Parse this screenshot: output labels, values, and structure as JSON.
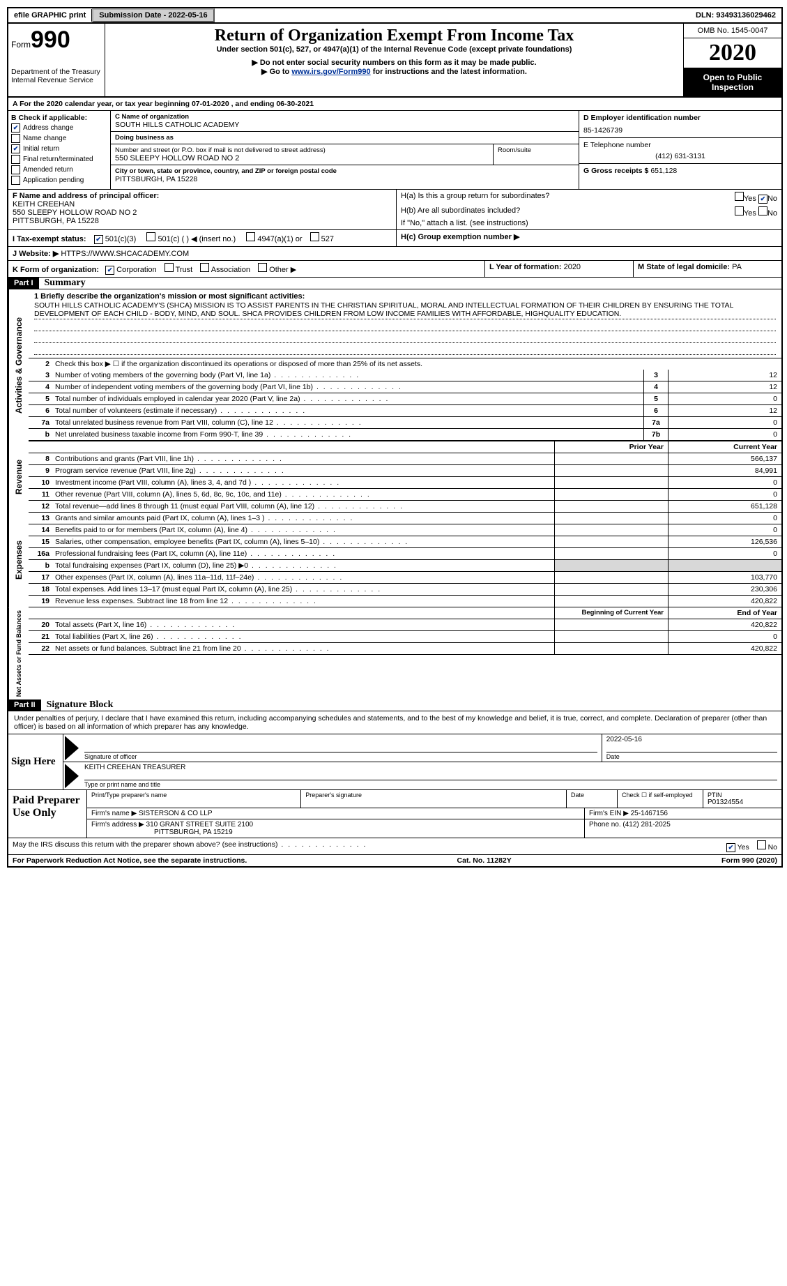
{
  "topbar": {
    "efile": "efile GRAPHIC print",
    "submission_label": "Submission Date - 2022-05-16",
    "dln": "DLN: 93493136029462"
  },
  "header": {
    "form_word": "Form",
    "form_num": "990",
    "dept1": "Department of the Treasury",
    "dept2": "Internal Revenue Service",
    "title": "Return of Organization Exempt From Income Tax",
    "subtitle": "Under section 501(c), 527, or 4947(a)(1) of the Internal Revenue Code (except private foundations)",
    "note1": "Do not enter social security numbers on this form as it may be made public.",
    "note2_pre": "Go to ",
    "note2_link": "www.irs.gov/Form990",
    "note2_post": " for instructions and the latest information.",
    "omb": "OMB No. 1545-0047",
    "year": "2020",
    "inspect": "Open to Public Inspection"
  },
  "rowA": "A For the 2020 calendar year, or tax year beginning 07-01-2020    , and ending 06-30-2021",
  "colB": {
    "label": "B Check if applicable:",
    "items": [
      {
        "label": "Address change",
        "checked": true
      },
      {
        "label": "Name change",
        "checked": false
      },
      {
        "label": "Initial return",
        "checked": true
      },
      {
        "label": "Final return/terminated",
        "checked": false
      },
      {
        "label": "Amended return",
        "checked": false
      },
      {
        "label": "Application pending",
        "checked": false
      }
    ]
  },
  "colC": {
    "name_lbl": "C Name of organization",
    "name": "SOUTH HILLS CATHOLIC ACADEMY",
    "dba_lbl": "Doing business as",
    "dba": "",
    "street_lbl": "Number and street (or P.O. box if mail is not delivered to street address)",
    "room_lbl": "Room/suite",
    "street": "550 SLEEPY HOLLOW ROAD NO 2",
    "city_lbl": "City or town, state or province, country, and ZIP or foreign postal code",
    "city": "PITTSBURGH, PA  15228",
    "officer_lbl": "F Name and address of principal officer:",
    "officer_name": "KEITH CREEHAN",
    "officer_addr1": "550 SLEEPY HOLLOW ROAD NO 2",
    "officer_addr2": "PITTSBURGH, PA  15228"
  },
  "colD": {
    "ein_lbl": "D Employer identification number",
    "ein": "85-1426739",
    "phone_lbl": "E Telephone number",
    "phone": "(412) 631-3131",
    "gross_lbl": "G Gross receipts $",
    "gross": "651,128"
  },
  "rowH": {
    "ha_lbl": "H(a)  Is this a group return for subordinates?",
    "ha_yes": "Yes",
    "ha_no": "No",
    "hb_lbl": "H(b)  Are all subordinates included?",
    "hb_yes": "Yes",
    "hb_no": "No",
    "hb_note": "If \"No,\" attach a list. (see instructions)",
    "hc_lbl": "H(c)  Group exemption number ▶"
  },
  "rowI": {
    "label": "I   Tax-exempt status:",
    "opt1": "501(c)(3)",
    "opt2": "501(c) (   ) ◀ (insert no.)",
    "opt3": "4947(a)(1) or",
    "opt4": "527"
  },
  "rowJ": {
    "label": "J   Website: ▶",
    "value": "HTTPS://WWW.SHCACADEMY.COM"
  },
  "rowK": {
    "label": "K Form of organization:",
    "opts": [
      "Corporation",
      "Trust",
      "Association",
      "Other ▶"
    ],
    "checked": 0
  },
  "rowL": {
    "l_label": "L Year of formation:",
    "l_val": "2020",
    "m_label": "M State of legal domicile:",
    "m_val": "PA"
  },
  "part1": {
    "header": "Part I",
    "title": "Summary",
    "q1_label": "1  Briefly describe the organization's mission or most significant activities:",
    "mission": "SOUTH HILLS CATHOLIC ACADEMY'S (SHCA) MISSION IS TO ASSIST PARENTS IN THE CHRISTIAN SPIRITUAL, MORAL AND INTELLECTUAL FORMATION OF THEIR CHILDREN BY ENSURING THE TOTAL DEVELOPMENT OF EACH CHILD - BODY, MIND, AND SOUL. SHCA PROVIDES CHILDREN FROM LOW INCOME FAMILIES WITH AFFORDABLE, HIGHQUALITY EDUCATION.",
    "q2": "Check this box ▶ ☐ if the organization discontinued its operations or disposed of more than 25% of its net assets.",
    "gov_rows": [
      {
        "n": "3",
        "t": "Number of voting members of the governing body (Part VI, line 1a)",
        "k": "3",
        "v": "12"
      },
      {
        "n": "4",
        "t": "Number of independent voting members of the governing body (Part VI, line 1b)",
        "k": "4",
        "v": "12"
      },
      {
        "n": "5",
        "t": "Total number of individuals employed in calendar year 2020 (Part V, line 2a)",
        "k": "5",
        "v": "0"
      },
      {
        "n": "6",
        "t": "Total number of volunteers (estimate if necessary)",
        "k": "6",
        "v": "12"
      },
      {
        "n": "7a",
        "t": "Total unrelated business revenue from Part VIII, column (C), line 12",
        "k": "7a",
        "v": "0"
      },
      {
        "n": "b",
        "t": "Net unrelated business taxable income from Form 990-T, line 39",
        "k": "7b",
        "v": "0"
      }
    ],
    "py_hdr": "Prior Year",
    "cy_hdr": "Current Year",
    "rev_rows": [
      {
        "n": "8",
        "t": "Contributions and grants (Part VIII, line 1h)",
        "py": "",
        "cy": "566,137"
      },
      {
        "n": "9",
        "t": "Program service revenue (Part VIII, line 2g)",
        "py": "",
        "cy": "84,991"
      },
      {
        "n": "10",
        "t": "Investment income (Part VIII, column (A), lines 3, 4, and 7d )",
        "py": "",
        "cy": "0"
      },
      {
        "n": "11",
        "t": "Other revenue (Part VIII, column (A), lines 5, 6d, 8c, 9c, 10c, and 11e)",
        "py": "",
        "cy": "0"
      },
      {
        "n": "12",
        "t": "Total revenue—add lines 8 through 11 (must equal Part VIII, column (A), line 12)",
        "py": "",
        "cy": "651,128"
      }
    ],
    "exp_rows": [
      {
        "n": "13",
        "t": "Grants and similar amounts paid (Part IX, column (A), lines 1–3 )",
        "py": "",
        "cy": "0"
      },
      {
        "n": "14",
        "t": "Benefits paid to or for members (Part IX, column (A), line 4)",
        "py": "",
        "cy": "0"
      },
      {
        "n": "15",
        "t": "Salaries, other compensation, employee benefits (Part IX, column (A), lines 5–10)",
        "py": "",
        "cy": "126,536"
      },
      {
        "n": "16a",
        "t": "Professional fundraising fees (Part IX, column (A), line 11e)",
        "py": "",
        "cy": "0"
      },
      {
        "n": "b",
        "t": "Total fundraising expenses (Part IX, column (D), line 25) ▶0",
        "py": "shade",
        "cy": "shade"
      },
      {
        "n": "17",
        "t": "Other expenses (Part IX, column (A), lines 11a–11d, 11f–24e)",
        "py": "",
        "cy": "103,770"
      },
      {
        "n": "18",
        "t": "Total expenses. Add lines 13–17 (must equal Part IX, column (A), line 25)",
        "py": "",
        "cy": "230,306"
      },
      {
        "n": "19",
        "t": "Revenue less expenses. Subtract line 18 from line 12",
        "py": "",
        "cy": "420,822"
      }
    ],
    "na_hdr1": "Beginning of Current Year",
    "na_hdr2": "End of Year",
    "na_rows": [
      {
        "n": "20",
        "t": "Total assets (Part X, line 16)",
        "py": "",
        "cy": "420,822"
      },
      {
        "n": "21",
        "t": "Total liabilities (Part X, line 26)",
        "py": "",
        "cy": "0"
      },
      {
        "n": "22",
        "t": "Net assets or fund balances. Subtract line 21 from line 20",
        "py": "",
        "cy": "420,822"
      }
    ],
    "vlabels": {
      "gov": "Activities & Governance",
      "rev": "Revenue",
      "exp": "Expenses",
      "na": "Net Assets or Fund Balances"
    }
  },
  "part2": {
    "header": "Part II",
    "title": "Signature Block",
    "penalty": "Under penalties of perjury, I declare that I have examined this return, including accompanying schedules and statements, and to the best of my knowledge and belief, it is true, correct, and complete. Declaration of preparer (other than officer) is based on all information of which preparer has any knowledge.",
    "sign_here": "Sign Here",
    "sig_officer_lbl": "Signature of officer",
    "sig_date": "2022-05-16",
    "date_lbl": "Date",
    "name_title": "KEITH CREEHAN  TREASURER",
    "name_title_lbl": "Type or print name and title",
    "paid": "Paid Preparer Use Only",
    "prep_name_lbl": "Print/Type preparer's name",
    "prep_sig_lbl": "Preparer's signature",
    "prep_date_lbl": "Date",
    "self_emp": "Check ☐ if self-employed",
    "ptin_lbl": "PTIN",
    "ptin": "P01324554",
    "firm_name_lbl": "Firm's name    ▶",
    "firm_name": "SISTERSON & CO LLP",
    "firm_ein_lbl": "Firm's EIN ▶",
    "firm_ein": "25-1467156",
    "firm_addr_lbl": "Firm's address ▶",
    "firm_addr1": "310 GRANT STREET SUITE 2100",
    "firm_addr2": "PITTSBURGH, PA  15219",
    "firm_phone_lbl": "Phone no.",
    "firm_phone": "(412) 281-2025",
    "discuss": "May the IRS discuss this return with the preparer shown above? (see instructions)",
    "yes": "Yes",
    "no": "No"
  },
  "footer": {
    "pra": "For Paperwork Reduction Act Notice, see the separate instructions.",
    "cat": "Cat. No. 11282Y",
    "form": "Form 990 (2020)"
  }
}
